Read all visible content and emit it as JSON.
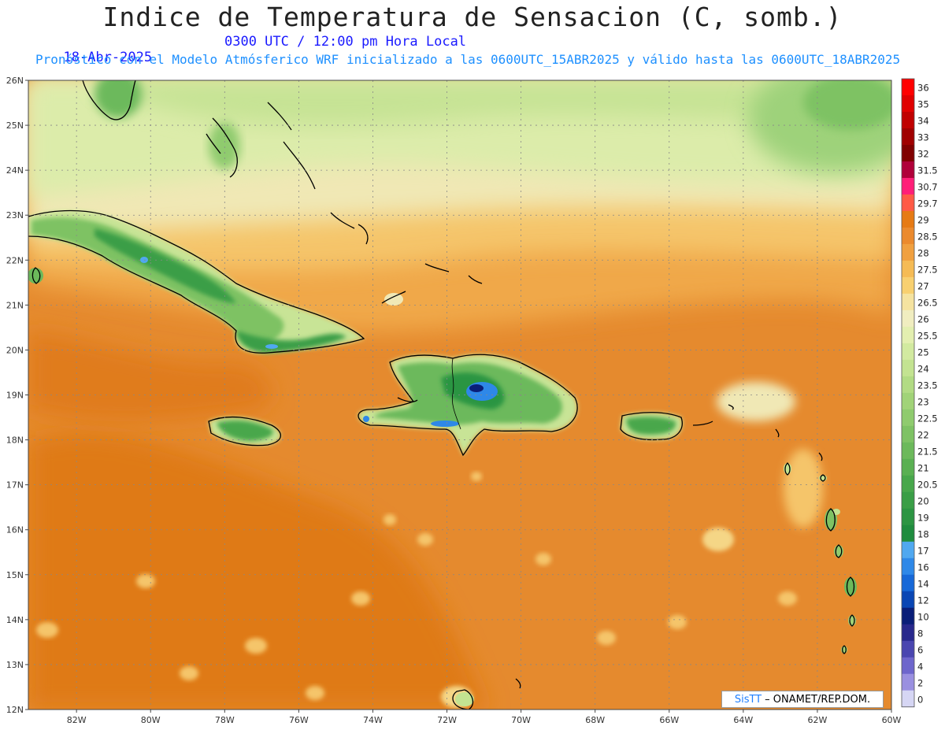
{
  "header": {
    "title": "Indice de Temperatura de Sensacion (C, somb.)",
    "date": "18-Abr-2025",
    "time": "0300 UTC / 12:00 pm Hora Local",
    "model_line": "Pronóstico con el Modelo Atmósferico WRF inicializado a las 0600UTC_15ABR2025 y válido hasta las  0600UTC_18ABR2025"
  },
  "map": {
    "lat_ticks": [
      "26N",
      "25N",
      "24N",
      "23N",
      "22N",
      "21N",
      "20N",
      "19N",
      "18N",
      "17N",
      "16N",
      "15N",
      "14N",
      "13N",
      "12N"
    ],
    "lon_ticks": [
      "82W",
      "80W",
      "78W",
      "76W",
      "74W",
      "72W",
      "70W",
      "68W",
      "66W",
      "64W",
      "62W",
      "60W"
    ],
    "lat_range": [
      12,
      26
    ],
    "lon_range": [
      -83.3,
      -60
    ],
    "grid": true,
    "features": {
      "land_labels": [],
      "ocean_base_color": "#e58a2e"
    }
  },
  "colorbar": {
    "labels": [
      "36",
      "35",
      "34",
      "33",
      "32",
      "31.5",
      "30.7",
      "29.7",
      "29",
      "28.5",
      "28",
      "27.5",
      "27",
      "26.5",
      "26",
      "25.5",
      "25",
      "24",
      "23.5",
      "23",
      "22.5",
      "22",
      "21.5",
      "21",
      "20.5",
      "20",
      "19",
      "18",
      "17",
      "16",
      "14",
      "12",
      "10",
      "8",
      "6",
      "4",
      "2",
      "0"
    ],
    "colors": [
      "#ff0000",
      "#e00000",
      "#c00000",
      "#a00000",
      "#800000",
      "#b0003a",
      "#ff1e78",
      "#ff5a46",
      "#e67a14",
      "#eb8a2e",
      "#f0a040",
      "#f5bb55",
      "#f8d070",
      "#f5e3a0",
      "#f0edc0",
      "#e3efb0",
      "#d2eaa0",
      "#c3e391",
      "#b2db84",
      "#a1d378",
      "#8fcb6e",
      "#7ec264",
      "#6cb95b",
      "#5ab052",
      "#48a74b",
      "#3a9e46",
      "#2c9542",
      "#1f8c3e",
      "#50a8f0",
      "#2e88e8",
      "#1668d8",
      "#0a46b4",
      "#0a1e78",
      "#28288c",
      "#4a46b0",
      "#6e66cc",
      "#9a90e0",
      "#d6d6f4"
    ]
  },
  "credit": {
    "logo": "SisTT",
    "text": "– ONAMET/REP.DOM."
  }
}
